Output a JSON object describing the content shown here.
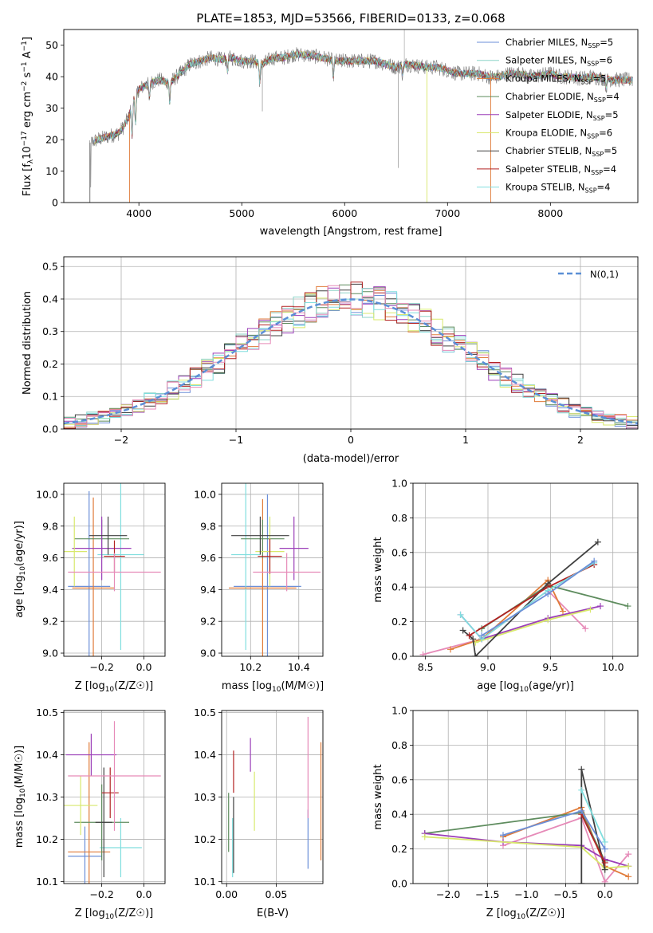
{
  "figure": {
    "title": "PLATE=1853, MJD=53566, FIBERID=0133, z=0.068"
  },
  "colors": {
    "chabrier_miles": "#6b8fd8",
    "salpeter_miles": "#8dd3c7",
    "kroupa_miles": "#e07b39",
    "chabrier_elodie": "#5e8c5e",
    "salpeter_elodie": "#9b3fb8",
    "kroupa_elodie": "#d8e86c",
    "chabrier_stelib": "#404040",
    "salpeter_stelib": "#b22222",
    "kroupa_stelib": "#80dede",
    "pink": "#e68ab8",
    "gaussian": "#5b8fd6",
    "grid": "#b0b0b0"
  },
  "chart_data": [
    {
      "id": "spectrum",
      "type": "line",
      "title": "PLATE=1853, MJD=53566, FIBERID=0133, z=0.068",
      "xlabel": "wavelength [Angstrom, rest frame]",
      "ylabel": "Flux [f_λ 10^-17 erg cm^-2 s^-1 A^-1]",
      "ylabel_parts": {
        "main": "Flux [f",
        "sub": "λ",
        "mid": "10",
        "sup1": "−17",
        "rest": " erg cm",
        "sup2": "−2",
        "rest2": " s",
        "sup3": "−1",
        "rest3": " A",
        "sup4": "−1",
        "end": "]"
      },
      "xlim": [
        3270,
        8850
      ],
      "ylim": [
        0,
        55
      ],
      "xticks": [
        4000,
        5000,
        6000,
        7000,
        8000
      ],
      "yticks": [
        0,
        10,
        20,
        30,
        40,
        50
      ],
      "grid": false,
      "legend_position": "upper-right",
      "spectrum_shape": {
        "x": [
          3520,
          3600,
          3700,
          3800,
          3850,
          3900,
          3950,
          4000,
          4100,
          4200,
          4300,
          4400,
          4500,
          4600,
          4700,
          4800,
          4900,
          5000,
          5100,
          5200,
          5300,
          5400,
          5500,
          5600,
          5700,
          5800,
          5900,
          6000,
          6100,
          6200,
          6300,
          6400,
          6500,
          6600,
          6700,
          6800,
          6900,
          7000,
          7100,
          7200,
          7300,
          7400,
          7500,
          7600,
          7700,
          7800,
          7900,
          8000,
          8100,
          8200,
          8300,
          8400,
          8500,
          8600,
          8700,
          8800
        ],
        "y": [
          19,
          20,
          21,
          22,
          24,
          27,
          33,
          36,
          38,
          39,
          38,
          41,
          44,
          45,
          46,
          45.5,
          46,
          45,
          45,
          44,
          46,
          46,
          47,
          47,
          46.5,
          46,
          45,
          45,
          45,
          45,
          45,
          44,
          43,
          44,
          43.5,
          43,
          43,
          42,
          41,
          41,
          41,
          40,
          40,
          41,
          41,
          40,
          40.5,
          41,
          40,
          40,
          39.5,
          40,
          39.5,
          39,
          39,
          39
        ]
      },
      "series": [
        {
          "name": "Chabrier MILES, N_SSP=5",
          "label": "Chabrier MILES, N",
          "sub": "SSP",
          "suffix": "=5",
          "color": "#6b8fd8"
        },
        {
          "name": "Salpeter MILES, N_SSP=6",
          "label": "Salpeter MILES, N",
          "sub": "SSP",
          "suffix": "=6",
          "color": "#8dd3c7"
        },
        {
          "name": "Kroupa MILES, N_SSP=5",
          "label": "Kroupa MILES, N",
          "sub": "SSP",
          "suffix": "=5",
          "color": "#e07b39"
        },
        {
          "name": "Chabrier ELODIE, N_SSP=4",
          "label": "Chabrier ELODIE, N",
          "sub": "SSP",
          "suffix": "=4",
          "color": "#5e8c5e"
        },
        {
          "name": "Salpeter ELODIE, N_SSP=5",
          "label": "Salpeter ELODIE, N",
          "sub": "SSP",
          "suffix": "=5",
          "color": "#9b3fb8"
        },
        {
          "name": "Kroupa ELODIE, N_SSP=6",
          "label": "Kroupa ELODIE, N",
          "sub": "SSP",
          "suffix": "=6",
          "color": "#d8e86c"
        },
        {
          "name": "Chabrier STELIB, N_SSP=5",
          "label": "Chabrier STELIB, N",
          "sub": "SSP",
          "suffix": "=5",
          "color": "#404040"
        },
        {
          "name": "Salpeter STELIB, N_SSP=4",
          "label": "Salpeter STELIB, N",
          "sub": "SSP",
          "suffix": "=4",
          "color": "#b22222"
        },
        {
          "name": "Kroupa STELIB, N_SSP=4",
          "label": "Kroupa STELIB, N",
          "sub": "SSP",
          "suffix": "=4",
          "color": "#80dede"
        }
      ]
    },
    {
      "id": "residual-hist",
      "type": "histogram",
      "xlabel": "(data-model)/error",
      "ylabel": "Normed distribution",
      "xlim": [
        -2.5,
        2.5
      ],
      "ylim": [
        0,
        0.53
      ],
      "xticks": [
        -2,
        -1,
        0,
        1,
        2
      ],
      "yticks": [
        0.0,
        0.1,
        0.2,
        0.3,
        0.4,
        0.5
      ],
      "grid": true,
      "legend": "N(0,1)",
      "legend_position": "upper-right",
      "bin_width": 0.1
    },
    {
      "id": "age-vs-Z",
      "type": "errorbar",
      "xlabel": "Z [log10(Z/Z☉)]",
      "ylabel": "age [log10(age/yr)]",
      "xlim": [
        -0.38,
        0.1
      ],
      "ylim": [
        8.98,
        10.07
      ],
      "xticks": [
        -0.2,
        0.0
      ],
      "yticks": [
        9.0,
        9.2,
        9.4,
        9.6,
        9.8,
        10.0
      ],
      "grid": true,
      "points": [
        {
          "x": -0.26,
          "y": 9.42,
          "xerr": 0.1,
          "yerr": 0.6,
          "color": "#6b8fd8"
        },
        {
          "x": -0.11,
          "y": 9.62,
          "xerr": 0.11,
          "yerr": 0.6,
          "color": "#80dede"
        },
        {
          "x": -0.24,
          "y": 9.41,
          "xerr": 0.1,
          "yerr": 0.57,
          "color": "#e07b39"
        },
        {
          "x": -0.2,
          "y": 9.72,
          "xerr": 0.13,
          "yerr": 0.12,
          "color": "#5e8c5e"
        },
        {
          "x": -0.2,
          "y": 9.66,
          "xerr": 0.14,
          "yerr": 0.2,
          "color": "#9b3fb8"
        },
        {
          "x": -0.33,
          "y": 9.64,
          "xerr": 0.06,
          "yerr": 0.22,
          "color": "#d8e86c"
        },
        {
          "x": -0.17,
          "y": 9.74,
          "xerr": 0.09,
          "yerr": 0.12,
          "color": "#404040"
        },
        {
          "x": -0.14,
          "y": 9.61,
          "xerr": 0.05,
          "yerr": 0.1,
          "color": "#b22222"
        },
        {
          "x": -0.14,
          "y": 9.51,
          "xerr": 0.22,
          "yerr": 0.12,
          "color": "#e68ab8"
        }
      ]
    },
    {
      "id": "age-vs-mass",
      "type": "errorbar",
      "xlabel": "mass [log10(M/M☉)]",
      "ylabel": "",
      "xlim": [
        10.08,
        10.5
      ],
      "ylim": [
        8.98,
        10.07
      ],
      "xticks": [
        10.2,
        10.4
      ],
      "yticks": [
        9.0,
        9.2,
        9.4,
        9.6,
        9.8,
        10.0
      ],
      "grid": true,
      "points": [
        {
          "x": 10.27,
          "y": 9.42,
          "xerr": 0.14,
          "yerr": 0.58,
          "color": "#6b8fd8"
        },
        {
          "x": 10.18,
          "y": 9.62,
          "xerr": 0.06,
          "yerr": 0.6,
          "color": "#80dede"
        },
        {
          "x": 10.25,
          "y": 9.41,
          "xerr": 0.14,
          "yerr": 0.56,
          "color": "#e07b39"
        },
        {
          "x": 10.25,
          "y": 9.72,
          "xerr": 0.09,
          "yerr": 0.12,
          "color": "#5e8c5e"
        },
        {
          "x": 10.38,
          "y": 9.66,
          "xerr": 0.06,
          "yerr": 0.2,
          "color": "#9b3fb8"
        },
        {
          "x": 10.28,
          "y": 9.64,
          "xerr": 0.06,
          "yerr": 0.22,
          "color": "#d8e86c"
        },
        {
          "x": 10.24,
          "y": 9.74,
          "xerr": 0.12,
          "yerr": 0.12,
          "color": "#404040"
        },
        {
          "x": 10.28,
          "y": 9.61,
          "xerr": 0.05,
          "yerr": 0.11,
          "color": "#b22222"
        },
        {
          "x": 10.35,
          "y": 9.51,
          "xerr": 0.14,
          "yerr": 0.12,
          "color": "#e68ab8"
        }
      ]
    },
    {
      "id": "weight-vs-age",
      "type": "line",
      "xlabel": "age [log10(age/yr)]",
      "ylabel": "mass weight",
      "xlim": [
        8.4,
        10.2
      ],
      "ylim": [
        0,
        1.0
      ],
      "xticks": [
        8.5,
        9.0,
        9.5,
        10.0
      ],
      "yticks": [
        0.0,
        0.2,
        0.4,
        0.6,
        0.8,
        1.0
      ],
      "grid": true,
      "series": [
        {
          "color": "#e68ab8",
          "x": [
            8.48,
            8.95,
            9.48,
            9.78
          ],
          "y": [
            0.01,
            0.1,
            0.38,
            0.16
          ]
        },
        {
          "color": "#e07b39",
          "x": [
            8.7,
            8.95,
            9.48,
            9.6
          ],
          "y": [
            0.04,
            0.1,
            0.44,
            0.26
          ]
        },
        {
          "color": "#5e8c5e",
          "x": [
            8.95,
            9.48,
            10.12
          ],
          "y": [
            0.16,
            0.41,
            0.29
          ]
        },
        {
          "color": "#9b3fb8",
          "x": [
            8.78,
            8.95,
            9.48,
            9.9
          ],
          "y": [
            0.24,
            0.1,
            0.22,
            0.29
          ]
        },
        {
          "color": "#d8e86c",
          "x": [
            8.9,
            9.48,
            9.82
          ],
          "y": [
            0.08,
            0.21,
            0.27
          ]
        },
        {
          "color": "#404040",
          "x": [
            8.8,
            8.88,
            8.9,
            9.48,
            9.88
          ],
          "y": [
            0.15,
            0.1,
            0.0,
            0.42,
            0.66
          ]
        },
        {
          "color": "#b22222",
          "x": [
            8.85,
            9.48,
            9.85
          ],
          "y": [
            0.12,
            0.4,
            0.53
          ]
        },
        {
          "color": "#80dede",
          "x": [
            8.78,
            8.95,
            9.48,
            9.85
          ],
          "y": [
            0.24,
            0.1,
            0.38,
            0.54
          ]
        },
        {
          "color": "#6b8fd8",
          "x": [
            8.95,
            9.48,
            9.85
          ],
          "y": [
            0.12,
            0.36,
            0.55
          ]
        }
      ]
    },
    {
      "id": "mass-vs-Z",
      "type": "errorbar",
      "xlabel": "Z [log10(Z/Z☉)]",
      "ylabel": "mass [log10(M/M☉)]",
      "xlim": [
        -0.38,
        0.1
      ],
      "ylim": [
        10.095,
        10.505
      ],
      "xticks": [
        -0.2,
        0.0
      ],
      "yticks": [
        10.1,
        10.2,
        10.3,
        10.4,
        10.5
      ],
      "grid": true,
      "points": [
        {
          "x": -0.28,
          "y": 10.16,
          "xerr": 0.08,
          "yerr": 0.07,
          "color": "#6b8fd8"
        },
        {
          "x": -0.11,
          "y": 10.18,
          "xerr": 0.1,
          "yerr": 0.07,
          "color": "#80dede"
        },
        {
          "x": -0.26,
          "y": 10.17,
          "xerr": 0.1,
          "yerr": 0.26,
          "color": "#e07b39"
        },
        {
          "x": -0.2,
          "y": 10.24,
          "xerr": 0.13,
          "yerr": 0.09,
          "color": "#5e8c5e"
        },
        {
          "x": -0.25,
          "y": 10.4,
          "xerr": 0.12,
          "yerr": 0.05,
          "color": "#9b3fb8"
        },
        {
          "x": -0.3,
          "y": 10.28,
          "xerr": 0.08,
          "yerr": 0.07,
          "color": "#d8e86c"
        },
        {
          "x": -0.19,
          "y": 10.24,
          "xerr": 0.04,
          "yerr": 0.13,
          "color": "#404040"
        },
        {
          "x": -0.16,
          "y": 10.31,
          "xerr": 0.04,
          "yerr": 0.06,
          "color": "#b22222"
        },
        {
          "x": -0.14,
          "y": 10.35,
          "xerr": 0.22,
          "yerr": 0.13,
          "color": "#e68ab8"
        }
      ]
    },
    {
      "id": "mass-vs-EBV",
      "type": "errorbar",
      "xlabel": "E(B-V)",
      "ylabel": "",
      "xlim": [
        -0.005,
        0.097
      ],
      "ylim": [
        10.095,
        10.505
      ],
      "xticks": [
        0.0,
        0.05
      ],
      "yticks": [
        10.1,
        10.2,
        10.3,
        10.4,
        10.5
      ],
      "grid": true,
      "points": [
        {
          "x": 0.082,
          "y": 10.2,
          "yerr": 0.07,
          "color": "#6b8fd8"
        },
        {
          "x": 0.006,
          "y": 10.18,
          "yerr": 0.07,
          "color": "#80dede"
        },
        {
          "x": 0.095,
          "y": 10.29,
          "yerr": 0.14,
          "color": "#e07b39"
        },
        {
          "x": 0.002,
          "y": 10.24,
          "yerr": 0.07,
          "color": "#5e8c5e"
        },
        {
          "x": 0.024,
          "y": 10.4,
          "yerr": 0.04,
          "color": "#9b3fb8"
        },
        {
          "x": 0.028,
          "y": 10.29,
          "yerr": 0.07,
          "color": "#d8e86c"
        },
        {
          "x": 0.007,
          "y": 10.21,
          "yerr": 0.09,
          "color": "#404040"
        },
        {
          "x": 0.007,
          "y": 10.36,
          "yerr": 0.05,
          "color": "#b22222"
        },
        {
          "x": 0.082,
          "y": 10.37,
          "yerr": 0.12,
          "color": "#e68ab8"
        }
      ]
    },
    {
      "id": "weight-vs-Z",
      "type": "line",
      "xlabel": "Z [log10(Z/Z☉)]",
      "ylabel": "mass weight",
      "xlim": [
        -2.45,
        0.42
      ],
      "ylim": [
        0,
        1.0
      ],
      "xticks": [
        -2.0,
        -1.5,
        -1.0,
        -0.5,
        0.0
      ],
      "yticks": [
        0.0,
        0.2,
        0.4,
        0.6,
        0.8,
        1.0
      ],
      "grid": true,
      "series": [
        {
          "color": "#e68ab8",
          "x": [
            -1.3,
            -0.3,
            0.0,
            0.3
          ],
          "y": [
            0.22,
            0.38,
            0.01,
            0.17
          ]
        },
        {
          "color": "#e07b39",
          "x": [
            -1.3,
            -0.3,
            0.0,
            0.3
          ],
          "y": [
            0.27,
            0.44,
            0.1,
            0.04
          ]
        },
        {
          "color": "#5e8c5e",
          "x": [
            -2.3,
            -0.3,
            0.0
          ],
          "y": [
            0.29,
            0.41,
            0.13
          ]
        },
        {
          "color": "#9b3fb8",
          "x": [
            -2.3,
            -1.3,
            -0.3,
            0.0,
            0.3
          ],
          "y": [
            0.29,
            0.24,
            0.22,
            0.14,
            0.1
          ]
        },
        {
          "color": "#d8e86c",
          "x": [
            -2.3,
            -0.3,
            0.0,
            0.3
          ],
          "y": [
            0.27,
            0.21,
            0.09,
            0.1
          ]
        },
        {
          "color": "#404040",
          "x": [
            -0.3,
            -0.3,
            0.0
          ],
          "y": [
            0.0,
            0.66,
            0.08
          ]
        },
        {
          "color": "#b22222",
          "x": [
            -0.3,
            0.0
          ],
          "y": [
            0.4,
            0.12
          ]
        },
        {
          "color": "#80dede",
          "x": [
            -0.3,
            0.0
          ],
          "y": [
            0.54,
            0.24
          ]
        },
        {
          "color": "#6b8fd8",
          "x": [
            -1.3,
            -0.3,
            0.0
          ],
          "y": [
            0.28,
            0.42,
            0.2
          ]
        }
      ]
    }
  ]
}
